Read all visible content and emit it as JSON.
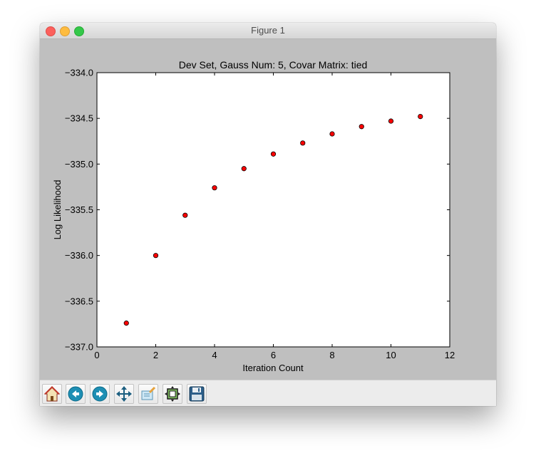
{
  "window": {
    "title": "Figure 1"
  },
  "toolbar": {
    "buttons": [
      {
        "icon": "home-icon"
      },
      {
        "icon": "back-arrow-icon"
      },
      {
        "icon": "forward-arrow-icon"
      },
      {
        "icon": "pan-move-icon"
      },
      {
        "icon": "zoom-rect-icon"
      },
      {
        "icon": "subplots-config-icon"
      },
      {
        "icon": "save-floppy-icon"
      }
    ]
  },
  "chart_data": {
    "type": "scatter",
    "title": "Dev Set, Gauss Num: 5, Covar Matrix: tied",
    "xlabel": "Iteration Count",
    "ylabel": "Log Likelihood",
    "xlim": [
      0,
      12
    ],
    "ylim": [
      -337.0,
      -334.0
    ],
    "xticks": [
      "0",
      "2",
      "4",
      "6",
      "8",
      "10",
      "12"
    ],
    "yticks": [
      "−334.0",
      "−334.5",
      "−335.0",
      "−335.5",
      "−336.0",
      "−336.5",
      "−337.0"
    ],
    "ytick_values": [
      -334.0,
      -334.5,
      -335.0,
      -335.5,
      -336.0,
      -336.5,
      -337.0
    ],
    "xtick_values": [
      0,
      2,
      4,
      6,
      8,
      10,
      12
    ],
    "grid": false,
    "marker_color": "#ff0000",
    "x": [
      1,
      2,
      3,
      4,
      5,
      6,
      7,
      8,
      9,
      10,
      11
    ],
    "y": [
      -336.74,
      -336.0,
      -335.56,
      -335.26,
      -335.05,
      -334.89,
      -334.77,
      -334.67,
      -334.59,
      -334.53,
      -334.48
    ]
  }
}
